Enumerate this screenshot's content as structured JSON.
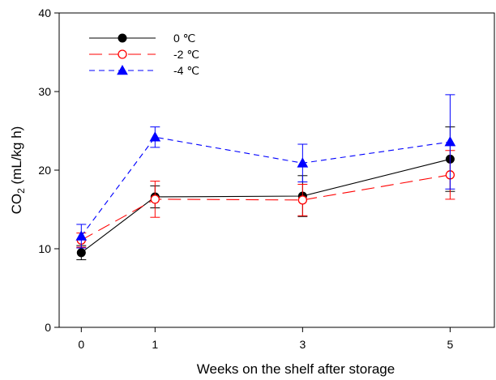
{
  "chart_data": {
    "type": "line",
    "xlabel": "Weeks on the shelf after storage",
    "ylabel_main": "CO",
    "ylabel_sub": "2",
    "ylabel_unit": " (mL/kg h)",
    "x": [
      0,
      1,
      3,
      5
    ],
    "xlim": [
      -0.3,
      5.6
    ],
    "ylim": [
      0,
      40
    ],
    "x_ticks": [
      "0",
      "1",
      "3",
      "5"
    ],
    "y_ticks": [
      "0",
      "10",
      "20",
      "30",
      "40"
    ],
    "grid": false,
    "legend_position": "top-left",
    "series": [
      {
        "name": "0 ℃",
        "color": "#000000",
        "dash": "solid",
        "marker": "filled-circle",
        "values": [
          9.5,
          16.6,
          16.7,
          21.4
        ],
        "error": [
          0.9,
          1.4,
          2.6,
          4.1
        ]
      },
      {
        "name": "-2 ℃",
        "color": "#ff0000",
        "dash": "long-dash",
        "marker": "open-circle",
        "values": [
          11.1,
          16.3,
          16.2,
          19.4
        ],
        "error": [
          0.9,
          2.3,
          2.0,
          3.1
        ]
      },
      {
        "name": "-4 ℃",
        "color": "#0000ff",
        "dash": "short-dash",
        "marker": "filled-triangle",
        "values": [
          11.6,
          24.2,
          20.9,
          23.6
        ],
        "error": [
          1.5,
          1.3,
          2.4,
          6.0
        ]
      }
    ]
  }
}
